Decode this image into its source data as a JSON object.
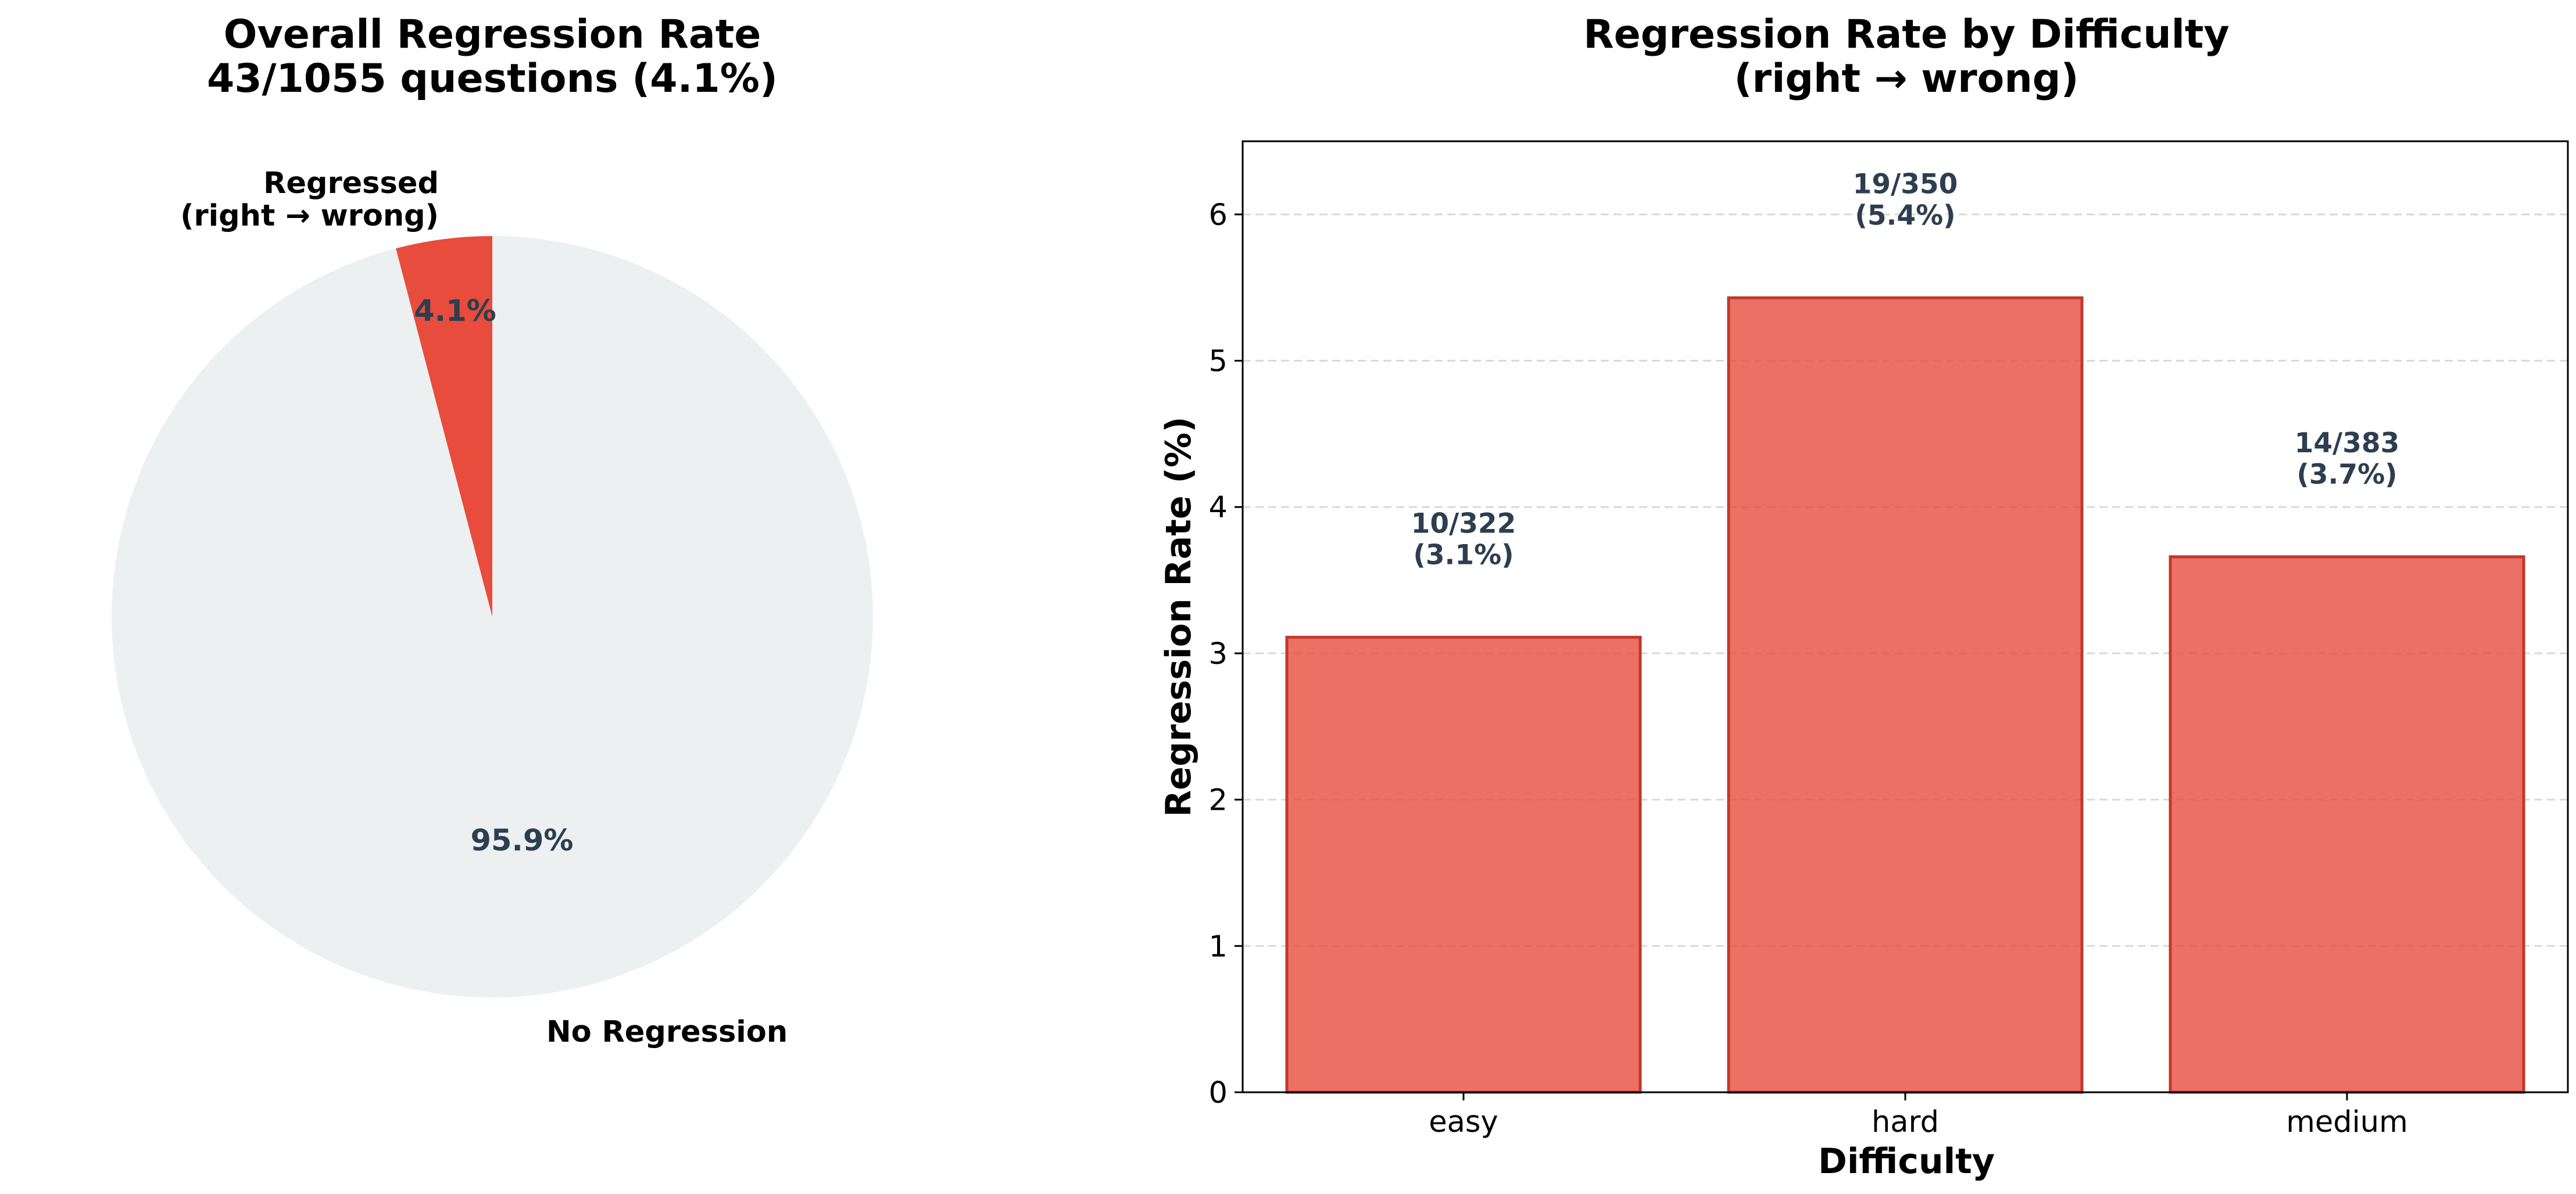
{
  "colors": {
    "regressed": "#e74c3c",
    "no_regression": "#ecf0f1",
    "bar_fill": "#e74c3c",
    "bar_edge": "#c0392b",
    "annotation_text": "#2c3e50",
    "grid": "#d9d9d9"
  },
  "chart_data": [
    {
      "type": "pie",
      "title_line1": "Overall Regression Rate",
      "title_line2": "43/1055 questions (4.1%)",
      "start_angle_deg": 90,
      "direction": "counterclockwise",
      "slices": [
        {
          "key": "regressed",
          "label_line1": "Regressed",
          "label_line2": "(right → wrong)",
          "value": 43,
          "pct_label": "4.1%"
        },
        {
          "key": "no_regression",
          "label_line1": "No Regression",
          "label_line2": "",
          "value": 1012,
          "pct_label": "95.9%"
        }
      ]
    },
    {
      "type": "bar",
      "title_line1": "Regression Rate by Difficulty",
      "title_line2": "(right → wrong)",
      "xlabel": "Difficulty",
      "ylabel": "Regression Rate (%)",
      "categories": [
        "easy",
        "hard",
        "medium"
      ],
      "values": [
        3.11,
        5.43,
        3.66
      ],
      "annotations": [
        {
          "line1": "10/322",
          "line2": "(3.1%)"
        },
        {
          "line1": "19/350",
          "line2": "(5.4%)"
        },
        {
          "line1": "14/383",
          "line2": "(3.7%)"
        }
      ],
      "ylim": [
        0,
        6.5
      ],
      "yticks": [
        0,
        1,
        2,
        3,
        4,
        5,
        6
      ],
      "grid": "y-dashed"
    }
  ]
}
